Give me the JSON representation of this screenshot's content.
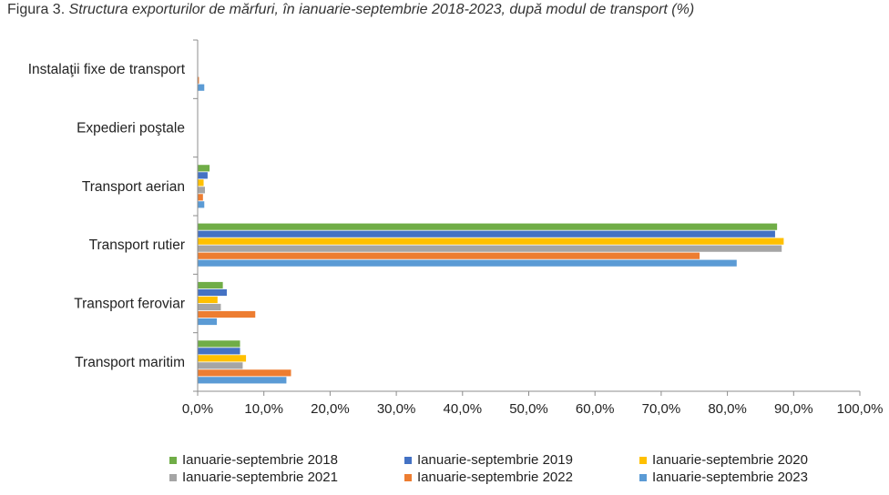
{
  "figure": {
    "label": "Figura 3.",
    "title": "Structura exporturilor de mărfuri, în ianuarie-septembrie 2018-2023, după modul de transport (%)"
  },
  "chart_data": {
    "type": "bar",
    "orientation": "horizontal",
    "title": "Structura exporturilor de mărfuri, în ianuarie-septembrie 2018-2023, după modul de transport (%)",
    "categories": [
      "Instalaţii fixe de transport",
      "Expedieri poştale",
      "Transport aerian",
      "Transport rutier",
      "Transport feroviar",
      "Transport maritim"
    ],
    "series": [
      {
        "name": "Ianuarie-septembrie 2018",
        "color": "#70AD47",
        "values": [
          0.0,
          0.0,
          1.8,
          87.5,
          3.8,
          6.4
        ]
      },
      {
        "name": "Ianuarie-septembrie 2019",
        "color": "#4472C4",
        "values": [
          0.0,
          0.0,
          1.5,
          87.2,
          4.4,
          6.4
        ]
      },
      {
        "name": "Ianuarie-septembrie 2020",
        "color": "#FFC000",
        "values": [
          0.0,
          0.0,
          0.9,
          88.5,
          3.0,
          7.3
        ]
      },
      {
        "name": "Ianuarie-septembrie 2021",
        "color": "#A5A5A5",
        "values": [
          0.0,
          0.0,
          1.1,
          88.2,
          3.5,
          6.8
        ]
      },
      {
        "name": "Ianuarie-septembrie 2022",
        "color": "#ED7D31",
        "values": [
          0.2,
          0.0,
          0.8,
          75.8,
          8.7,
          14.1
        ]
      },
      {
        "name": "Ianuarie-septembrie 2023",
        "color": "#5B9BD5",
        "values": [
          1.0,
          0.0,
          1.0,
          81.4,
          2.9,
          13.4
        ]
      }
    ],
    "xlim": [
      0,
      100
    ],
    "xticks": [
      "0,0%",
      "10,0%",
      "20,0%",
      "30,0%",
      "40,0%",
      "50,0%",
      "60,0%",
      "70,0%",
      "80,0%",
      "90,0%",
      "100,0%"
    ],
    "grid": false,
    "legend_position": "bottom"
  }
}
